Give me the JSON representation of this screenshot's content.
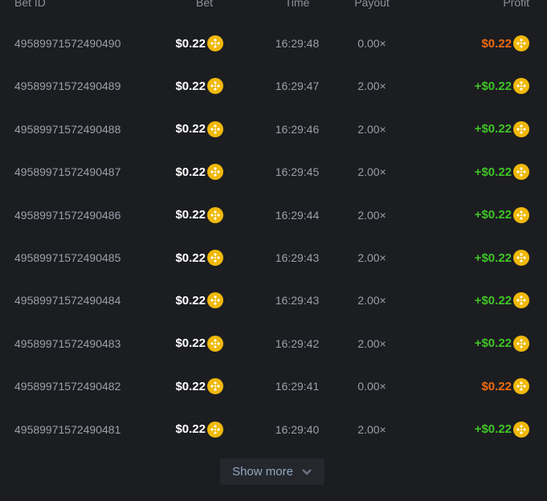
{
  "headers": {
    "id": "Bet ID",
    "bet": "Bet",
    "time": "Time",
    "payout": "Payout",
    "profit": "Profit"
  },
  "colors": {
    "loss": "#f06b0e",
    "win": "#3fc526",
    "coin": "#f0b90b"
  },
  "rows": [
    {
      "id": "49589971572490490",
      "bet": "$0.22",
      "time": "16:29:48",
      "payout": "0.00×",
      "profit": "$0.22",
      "win": false
    },
    {
      "id": "49589971572490489",
      "bet": "$0.22",
      "time": "16:29:47",
      "payout": "2.00×",
      "profit": "+$0.22",
      "win": true
    },
    {
      "id": "49589971572490488",
      "bet": "$0.22",
      "time": "16:29:46",
      "payout": "2.00×",
      "profit": "+$0.22",
      "win": true
    },
    {
      "id": "49589971572490487",
      "bet": "$0.22",
      "time": "16:29:45",
      "payout": "2.00×",
      "profit": "+$0.22",
      "win": true
    },
    {
      "id": "49589971572490486",
      "bet": "$0.22",
      "time": "16:29:44",
      "payout": "2.00×",
      "profit": "+$0.22",
      "win": true
    },
    {
      "id": "49589971572490485",
      "bet": "$0.22",
      "time": "16:29:43",
      "payout": "2.00×",
      "profit": "+$0.22",
      "win": true
    },
    {
      "id": "49589971572490484",
      "bet": "$0.22",
      "time": "16:29:43",
      "payout": "2.00×",
      "profit": "+$0.22",
      "win": true
    },
    {
      "id": "49589971572490483",
      "bet": "$0.22",
      "time": "16:29:42",
      "payout": "2.00×",
      "profit": "+$0.22",
      "win": true
    },
    {
      "id": "49589971572490482",
      "bet": "$0.22",
      "time": "16:29:41",
      "payout": "0.00×",
      "profit": "$0.22",
      "win": false
    },
    {
      "id": "49589971572490481",
      "bet": "$0.22",
      "time": "16:29:40",
      "payout": "2.00×",
      "profit": "+$0.22",
      "win": true
    }
  ],
  "show_more": "Show more"
}
